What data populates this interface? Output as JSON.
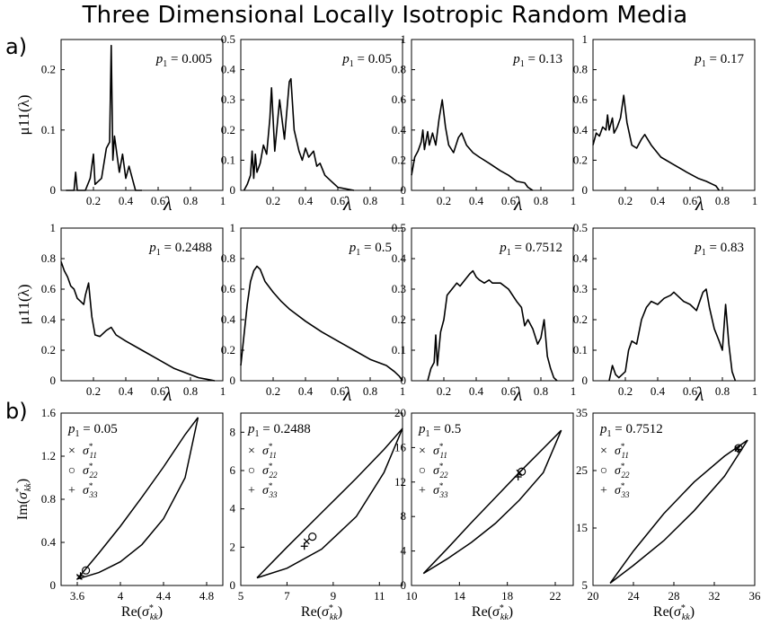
{
  "title": "Three Dimensional Locally Isotropic Random Media",
  "panel_tags": {
    "a": "a)",
    "b": "b)"
  },
  "chart_data": [
    {
      "type": "line",
      "panel": "a",
      "row": 1,
      "col": 1,
      "annotation": "p1 = 0.005",
      "xlabel": "λ",
      "ylabel": "μ11(λ)",
      "xlim": [
        0,
        1
      ],
      "ylim": [
        0,
        0.25
      ],
      "xticks": [
        0.2,
        0.4,
        0.6,
        0.8,
        1
      ],
      "yticks": [
        0,
        0.1,
        0.2
      ],
      "x": [
        0.03,
        0.08,
        0.09,
        0.1,
        0.15,
        0.18,
        0.2,
        0.21,
        0.25,
        0.28,
        0.3,
        0.31,
        0.32,
        0.33,
        0.36,
        0.38,
        0.4,
        0.42,
        0.44,
        0.46,
        0.5
      ],
      "y": [
        0,
        0,
        0.03,
        0,
        0,
        0.02,
        0.06,
        0.01,
        0.02,
        0.07,
        0.08,
        0.24,
        0.05,
        0.09,
        0.03,
        0.06,
        0.02,
        0.04,
        0.02,
        0,
        0
      ]
    },
    {
      "type": "line",
      "panel": "a",
      "row": 1,
      "col": 2,
      "annotation": "p1 = 0.05",
      "xlabel": "λ",
      "ylabel": "",
      "xlim": [
        0,
        1
      ],
      "ylim": [
        0,
        0.5
      ],
      "xticks": [
        0.2,
        0.4,
        0.6,
        0.8,
        1
      ],
      "yticks": [
        0,
        0.1,
        0.2,
        0.3,
        0.4,
        0.5
      ],
      "x": [
        0.02,
        0.04,
        0.06,
        0.07,
        0.08,
        0.09,
        0.1,
        0.12,
        0.14,
        0.16,
        0.18,
        0.19,
        0.21,
        0.24,
        0.27,
        0.3,
        0.31,
        0.33,
        0.36,
        0.38,
        0.4,
        0.42,
        0.45,
        0.47,
        0.49,
        0.52,
        0.56,
        0.6,
        0.7
      ],
      "y": [
        0,
        0.02,
        0.05,
        0.13,
        0.04,
        0.12,
        0.06,
        0.09,
        0.15,
        0.12,
        0.24,
        0.34,
        0.13,
        0.3,
        0.17,
        0.36,
        0.37,
        0.2,
        0.13,
        0.1,
        0.14,
        0.11,
        0.13,
        0.08,
        0.09,
        0.05,
        0.03,
        0.01,
        0
      ]
    },
    {
      "type": "line",
      "panel": "a",
      "row": 1,
      "col": 3,
      "annotation": "p1 = 0.13",
      "xlabel": "λ",
      "ylabel": "",
      "xlim": [
        0,
        1
      ],
      "ylim": [
        0,
        1
      ],
      "xticks": [
        0.2,
        0.4,
        0.6,
        0.8,
        1
      ],
      "yticks": [
        0,
        0.2,
        0.4,
        0.6,
        0.8,
        1
      ],
      "x": [
        0,
        0.02,
        0.04,
        0.06,
        0.07,
        0.08,
        0.1,
        0.11,
        0.13,
        0.15,
        0.17,
        0.19,
        0.21,
        0.23,
        0.26,
        0.29,
        0.31,
        0.34,
        0.38,
        0.42,
        0.48,
        0.55,
        0.6,
        0.65,
        0.7,
        0.72,
        0.75
      ],
      "y": [
        0.1,
        0.22,
        0.26,
        0.32,
        0.4,
        0.27,
        0.39,
        0.3,
        0.38,
        0.3,
        0.47,
        0.6,
        0.42,
        0.3,
        0.25,
        0.35,
        0.38,
        0.3,
        0.25,
        0.22,
        0.18,
        0.13,
        0.1,
        0.06,
        0.05,
        0.02,
        0
      ]
    },
    {
      "type": "line",
      "panel": "a",
      "row": 1,
      "col": 4,
      "annotation": "p1 = 0.17",
      "xlabel": "λ",
      "ylabel": "",
      "xlim": [
        0,
        1
      ],
      "ylim": [
        0,
        1
      ],
      "xticks": [
        0.2,
        0.4,
        0.6,
        0.8,
        1
      ],
      "yticks": [
        0,
        0.2,
        0.4,
        0.6,
        0.8,
        1
      ],
      "x": [
        0,
        0.02,
        0.04,
        0.06,
        0.08,
        0.09,
        0.1,
        0.12,
        0.13,
        0.15,
        0.17,
        0.19,
        0.21,
        0.24,
        0.27,
        0.3,
        0.32,
        0.36,
        0.42,
        0.5,
        0.58,
        0.65,
        0.7,
        0.74,
        0.76,
        0.78
      ],
      "y": [
        0.3,
        0.38,
        0.36,
        0.42,
        0.4,
        0.5,
        0.4,
        0.48,
        0.38,
        0.42,
        0.48,
        0.63,
        0.45,
        0.3,
        0.28,
        0.34,
        0.37,
        0.3,
        0.22,
        0.17,
        0.12,
        0.08,
        0.06,
        0.04,
        0.03,
        0
      ]
    },
    {
      "type": "line",
      "panel": "a",
      "row": 2,
      "col": 1,
      "annotation": "p1 = 0.2488",
      "xlabel": "λ",
      "ylabel": "μ11(λ)",
      "xlim": [
        0,
        1
      ],
      "ylim": [
        0,
        1
      ],
      "xticks": [
        0.2,
        0.4,
        0.6,
        0.8,
        1
      ],
      "yticks": [
        0,
        0.2,
        0.4,
        0.6,
        0.8,
        1
      ],
      "x": [
        0,
        0.02,
        0.04,
        0.06,
        0.08,
        0.1,
        0.12,
        0.14,
        0.15,
        0.17,
        0.19,
        0.21,
        0.24,
        0.28,
        0.31,
        0.34,
        0.4,
        0.5,
        0.6,
        0.7,
        0.8,
        0.85,
        0.9,
        0.95
      ],
      "y": [
        0.78,
        0.72,
        0.68,
        0.62,
        0.6,
        0.54,
        0.52,
        0.5,
        0.56,
        0.64,
        0.42,
        0.3,
        0.29,
        0.33,
        0.35,
        0.3,
        0.26,
        0.2,
        0.14,
        0.08,
        0.04,
        0.02,
        0.01,
        0
      ]
    },
    {
      "type": "line",
      "panel": "a",
      "row": 2,
      "col": 2,
      "annotation": "p1 = 0.5",
      "xlabel": "λ",
      "ylabel": "",
      "xlim": [
        0,
        1
      ],
      "ylim": [
        0,
        1
      ],
      "xticks": [
        0.2,
        0.4,
        0.6,
        0.8,
        1
      ],
      "yticks": [
        0,
        0.2,
        0.4,
        0.6,
        0.8,
        1
      ],
      "x": [
        0,
        0.02,
        0.04,
        0.06,
        0.08,
        0.1,
        0.12,
        0.15,
        0.2,
        0.25,
        0.3,
        0.35,
        0.4,
        0.5,
        0.6,
        0.7,
        0.8,
        0.85,
        0.9,
        0.95,
        0.98,
        1
      ],
      "y": [
        0.1,
        0.3,
        0.5,
        0.65,
        0.72,
        0.75,
        0.73,
        0.65,
        0.58,
        0.52,
        0.47,
        0.43,
        0.39,
        0.32,
        0.26,
        0.2,
        0.14,
        0.12,
        0.1,
        0.06,
        0.03,
        0
      ]
    },
    {
      "type": "line",
      "panel": "a",
      "row": 2,
      "col": 3,
      "annotation": "p1 = 0.7512",
      "xlabel": "λ",
      "ylabel": "",
      "xlim": [
        0,
        1
      ],
      "ylim": [
        0,
        0.5
      ],
      "xticks": [
        0.2,
        0.4,
        0.6,
        0.8,
        1
      ],
      "yticks": [
        0,
        0.1,
        0.2,
        0.3,
        0.4,
        0.5
      ],
      "x": [
        0.1,
        0.12,
        0.14,
        0.15,
        0.16,
        0.18,
        0.2,
        0.22,
        0.25,
        0.28,
        0.3,
        0.33,
        0.36,
        0.38,
        0.4,
        0.42,
        0.45,
        0.48,
        0.5,
        0.55,
        0.6,
        0.65,
        0.68,
        0.7,
        0.72,
        0.75,
        0.78,
        0.8,
        0.82,
        0.84,
        0.86,
        0.88,
        0.9
      ],
      "y": [
        0,
        0.04,
        0.06,
        0.15,
        0.05,
        0.16,
        0.2,
        0.28,
        0.3,
        0.32,
        0.31,
        0.33,
        0.35,
        0.36,
        0.34,
        0.33,
        0.32,
        0.33,
        0.32,
        0.32,
        0.3,
        0.26,
        0.24,
        0.18,
        0.2,
        0.17,
        0.12,
        0.14,
        0.2,
        0.08,
        0.04,
        0.01,
        0
      ]
    },
    {
      "type": "line",
      "panel": "a",
      "row": 2,
      "col": 4,
      "annotation": "p1 = 0.83",
      "xlabel": "λ",
      "ylabel": "",
      "xlim": [
        0,
        1
      ],
      "ylim": [
        0,
        0.5
      ],
      "xticks": [
        0.2,
        0.4,
        0.6,
        0.8,
        1
      ],
      "yticks": [
        0,
        0.1,
        0.2,
        0.3,
        0.4,
        0.5
      ],
      "x": [
        0.1,
        0.12,
        0.14,
        0.16,
        0.2,
        0.22,
        0.24,
        0.27,
        0.3,
        0.33,
        0.36,
        0.4,
        0.44,
        0.48,
        0.5,
        0.52,
        0.56,
        0.6,
        0.64,
        0.68,
        0.7,
        0.72,
        0.75,
        0.78,
        0.8,
        0.82,
        0.84,
        0.86,
        0.88
      ],
      "y": [
        0,
        0.05,
        0.02,
        0.01,
        0.03,
        0.1,
        0.13,
        0.12,
        0.2,
        0.24,
        0.26,
        0.25,
        0.27,
        0.28,
        0.29,
        0.28,
        0.26,
        0.25,
        0.23,
        0.29,
        0.3,
        0.24,
        0.17,
        0.13,
        0.1,
        0.25,
        0.12,
        0.03,
        0
      ]
    },
    {
      "type": "scatter",
      "panel": "b",
      "col": 1,
      "annotation": "p1 = 0.05",
      "xlabel": "Re(σkk*)",
      "ylabel": "Im(σkk*)",
      "xlim": [
        3.45,
        4.95
      ],
      "ylim": [
        0,
        1.6
      ],
      "xticks": [
        3.6,
        4,
        4.4,
        4.8
      ],
      "yticks": [
        0,
        0.4,
        0.8,
        1.2,
        1.6
      ],
      "bound_upper": {
        "x": [
          3.6,
          3.8,
          4.0,
          4.2,
          4.4,
          4.6,
          4.72
        ],
        "y": [
          0.06,
          0.3,
          0.55,
          0.82,
          1.1,
          1.4,
          1.56
        ]
      },
      "bound_lower": {
        "x": [
          3.6,
          3.8,
          4.0,
          4.2,
          4.4,
          4.6,
          4.72
        ],
        "y": [
          0.06,
          0.12,
          0.22,
          0.38,
          0.62,
          1.0,
          1.56
        ]
      },
      "legend": [
        "σ11*",
        "σ22*",
        "σ33*"
      ],
      "points": [
        {
          "series": "σ11*",
          "x": 3.62,
          "y": 0.08
        },
        {
          "series": "σ22*",
          "x": 3.68,
          "y": 0.14
        },
        {
          "series": "σ33*",
          "x": 3.63,
          "y": 0.09
        }
      ]
    },
    {
      "type": "scatter",
      "panel": "b",
      "col": 2,
      "annotation": "p1 = 0.2488",
      "xlabel": "Re(σkk*)",
      "ylabel": "",
      "xlim": [
        5,
        12
      ],
      "ylim": [
        0,
        9
      ],
      "xticks": [
        5,
        7,
        9,
        11
      ],
      "yticks": [
        0,
        2,
        4,
        6,
        8
      ],
      "bound_upper": {
        "x": [
          5.7,
          7,
          8.5,
          10,
          11.2,
          12
        ],
        "y": [
          0.4,
          2.0,
          3.8,
          5.6,
          7.1,
          8.2
        ]
      },
      "bound_lower": {
        "x": [
          5.7,
          7,
          8.5,
          10,
          11.2,
          12
        ],
        "y": [
          0.4,
          0.9,
          1.9,
          3.6,
          5.9,
          8.2
        ]
      },
      "legend": [
        "σ11*",
        "σ22*",
        "σ33*"
      ],
      "points": [
        {
          "series": "σ11*",
          "x": 7.85,
          "y": 2.3
        },
        {
          "series": "σ22*",
          "x": 8.1,
          "y": 2.55
        },
        {
          "series": "σ33*",
          "x": 7.75,
          "y": 2.05
        }
      ]
    },
    {
      "type": "scatter",
      "panel": "b",
      "col": 3,
      "annotation": "p1 = 0.5",
      "xlabel": "Re(σkk*)",
      "ylabel": "",
      "xlim": [
        10,
        23.5
      ],
      "ylim": [
        0,
        20
      ],
      "xticks": [
        10,
        14,
        18,
        22
      ],
      "yticks": [
        0,
        4,
        8,
        12,
        16,
        20
      ],
      "bound_upper": {
        "x": [
          11,
          13,
          15,
          17,
          19,
          21,
          22.5
        ],
        "y": [
          1.4,
          4.3,
          7.3,
          10.2,
          13.1,
          15.9,
          18
        ]
      },
      "bound_lower": {
        "x": [
          11,
          13,
          15,
          17,
          19,
          21,
          22.5
        ],
        "y": [
          1.4,
          3.1,
          5.0,
          7.2,
          9.9,
          13.1,
          18
        ]
      },
      "legend": [
        "σ11*",
        "σ22*",
        "σ33*"
      ],
      "points": [
        {
          "series": "σ11*",
          "x": 19.0,
          "y": 13.1
        },
        {
          "series": "σ22*",
          "x": 19.2,
          "y": 13.2
        },
        {
          "series": "σ33*",
          "x": 18.9,
          "y": 12.6
        }
      ]
    },
    {
      "type": "scatter",
      "panel": "b",
      "col": 4,
      "annotation": "p1 = 0.7512",
      "xlabel": "Re(σkk*)",
      "ylabel": "",
      "xlim": [
        20,
        36
      ],
      "ylim": [
        5,
        35
      ],
      "xticks": [
        20,
        24,
        28,
        32,
        36
      ],
      "yticks": [
        5,
        15,
        25,
        35
      ],
      "bound_upper": {
        "x": [
          21.7,
          24,
          27,
          30,
          33,
          35.3
        ],
        "y": [
          5.4,
          11,
          17.5,
          23,
          27.5,
          30.3
        ]
      },
      "bound_lower": {
        "x": [
          21.7,
          24,
          27,
          30,
          33,
          35.3
        ],
        "y": [
          5.4,
          8.5,
          12.8,
          18,
          24,
          30.3
        ]
      },
      "legend": [
        "σ11*",
        "σ22*",
        "σ33*"
      ],
      "points": [
        {
          "series": "σ11*",
          "x": 34.3,
          "y": 28.8
        },
        {
          "series": "σ22*",
          "x": 34.4,
          "y": 28.9
        },
        {
          "series": "σ33*",
          "x": 34.35,
          "y": 28.7
        }
      ]
    }
  ]
}
